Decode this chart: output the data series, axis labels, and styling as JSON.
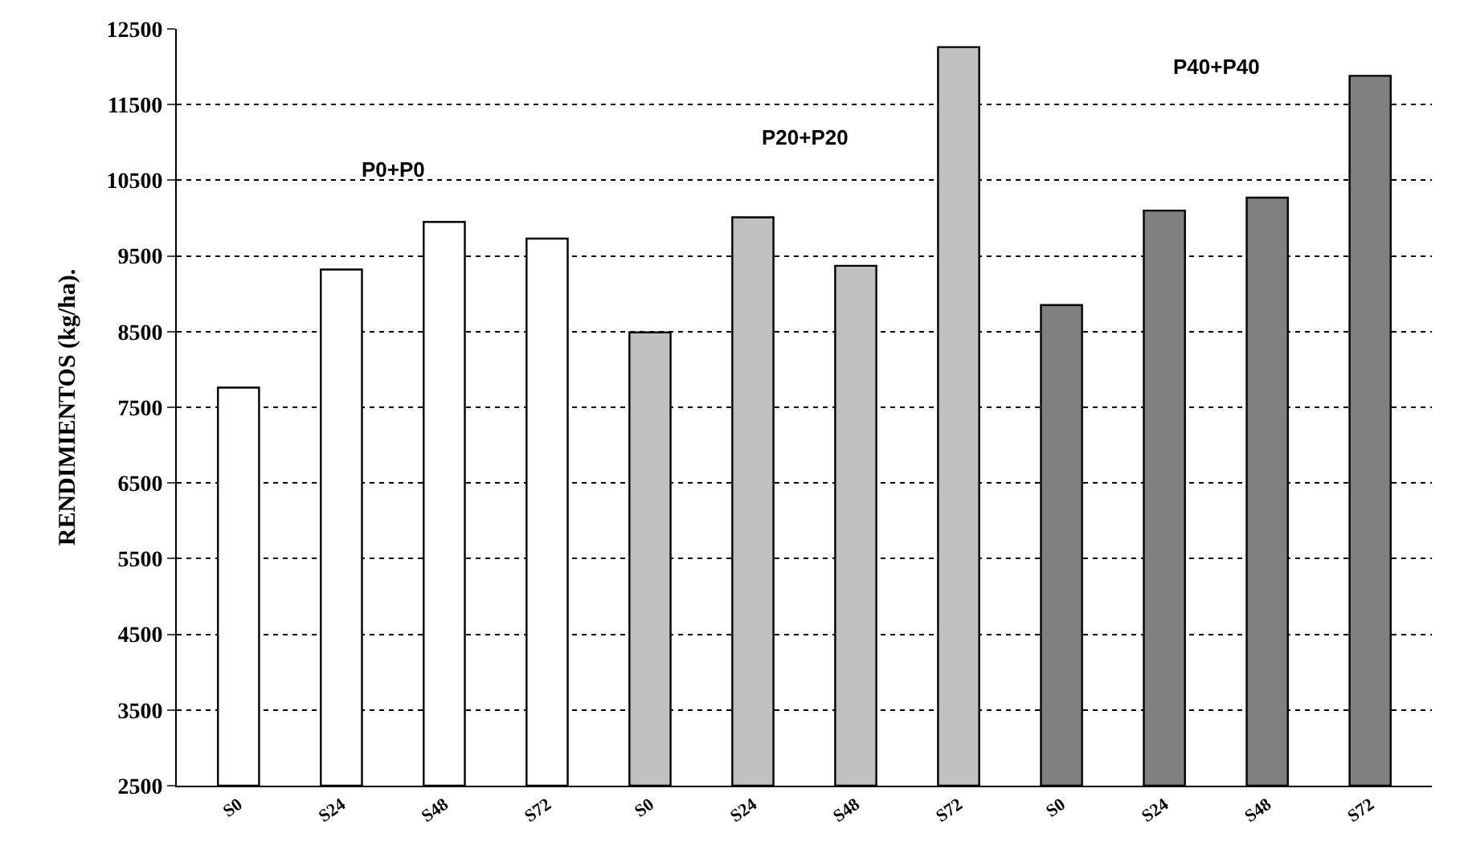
{
  "chart_data": {
    "type": "bar",
    "ylabel": "RENDIMIENTOS (kg/ha).",
    "categories": [
      "S0",
      "S24",
      "S48",
      "S72",
      "S0",
      "S24",
      "S48",
      "S72",
      "S0",
      "S24",
      "S48",
      "S72"
    ],
    "values": [
      7760,
      9320,
      9950,
      9730,
      8490,
      10010,
      9370,
      12260,
      8850,
      10100,
      10270,
      11880
    ],
    "colors": [
      "#ffffff",
      "#ffffff",
      "#ffffff",
      "#ffffff",
      "#c0c0c0",
      "#c0c0c0",
      "#c0c0c0",
      "#c0c0c0",
      "#808080",
      "#808080",
      "#808080",
      "#808080"
    ],
    "annotations": [
      "P0+P0",
      "P20+P20",
      "P40+P40"
    ],
    "ylim": [
      2500,
      12500
    ],
    "yticks": [
      2500,
      3500,
      4500,
      5500,
      6500,
      7500,
      8500,
      9500,
      10500,
      11500,
      12500
    ],
    "grid": "y",
    "legend": false
  }
}
